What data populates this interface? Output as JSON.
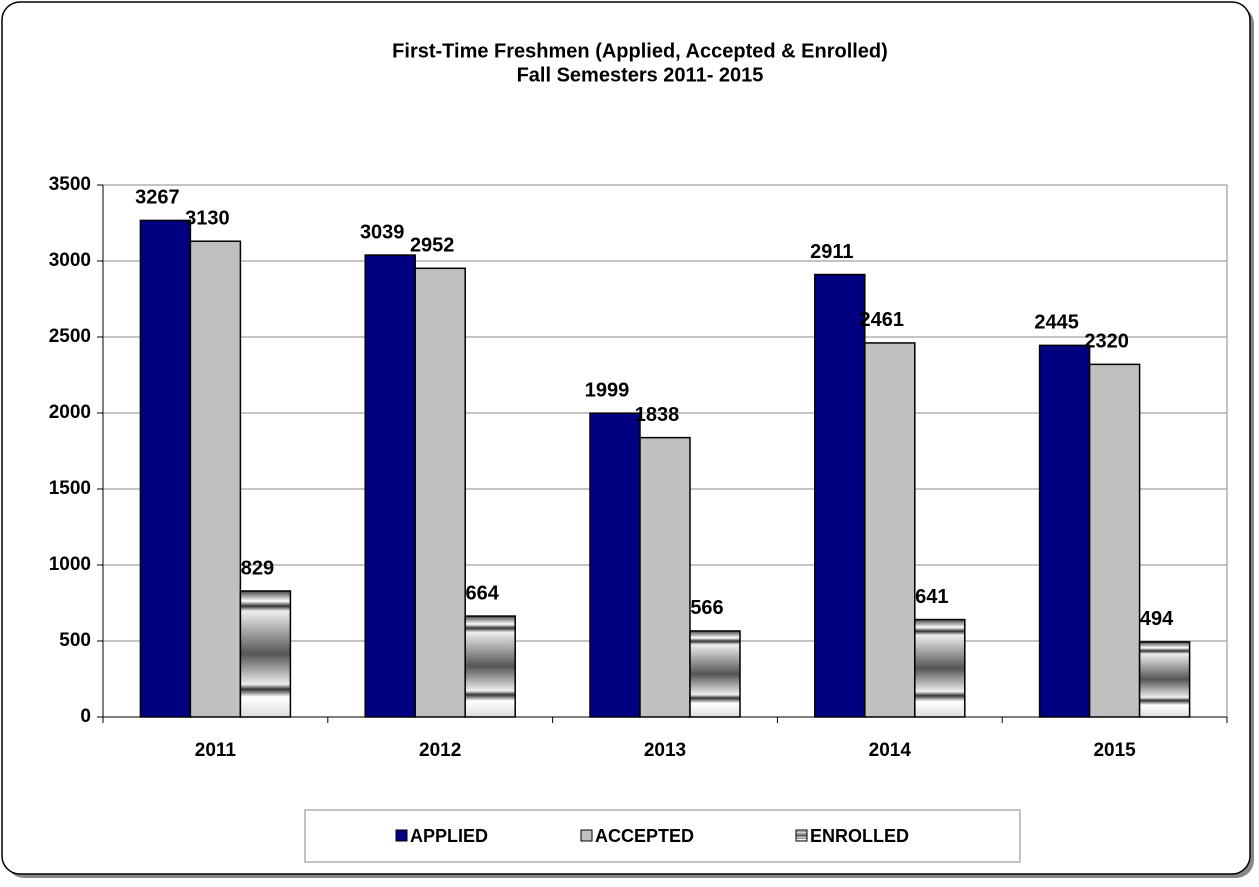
{
  "chart_data": {
    "type": "bar",
    "title": "First-Time Freshmen (Applied, Accepted & Enrolled)",
    "subtitle": "Fall Semesters 2011- 2015",
    "categories": [
      "2011",
      "2012",
      "2013",
      "2014",
      "2015"
    ],
    "series": [
      {
        "name": "APPLIED",
        "color": "#000080",
        "values": [
          3267,
          3039,
          1999,
          2911,
          2445
        ]
      },
      {
        "name": "ACCEPTED",
        "color": "#c0c0c0",
        "values": [
          3130,
          2952,
          1838,
          2461,
          2320
        ]
      },
      {
        "name": "ENROLLED",
        "color": "#808080",
        "values": [
          829,
          664,
          566,
          641,
          494
        ]
      }
    ],
    "ylim": [
      0,
      3500
    ],
    "yticks": [
      0,
      500,
      1000,
      1500,
      2000,
      2500,
      3000,
      3500
    ],
    "grid": true,
    "legend": "bottom"
  }
}
